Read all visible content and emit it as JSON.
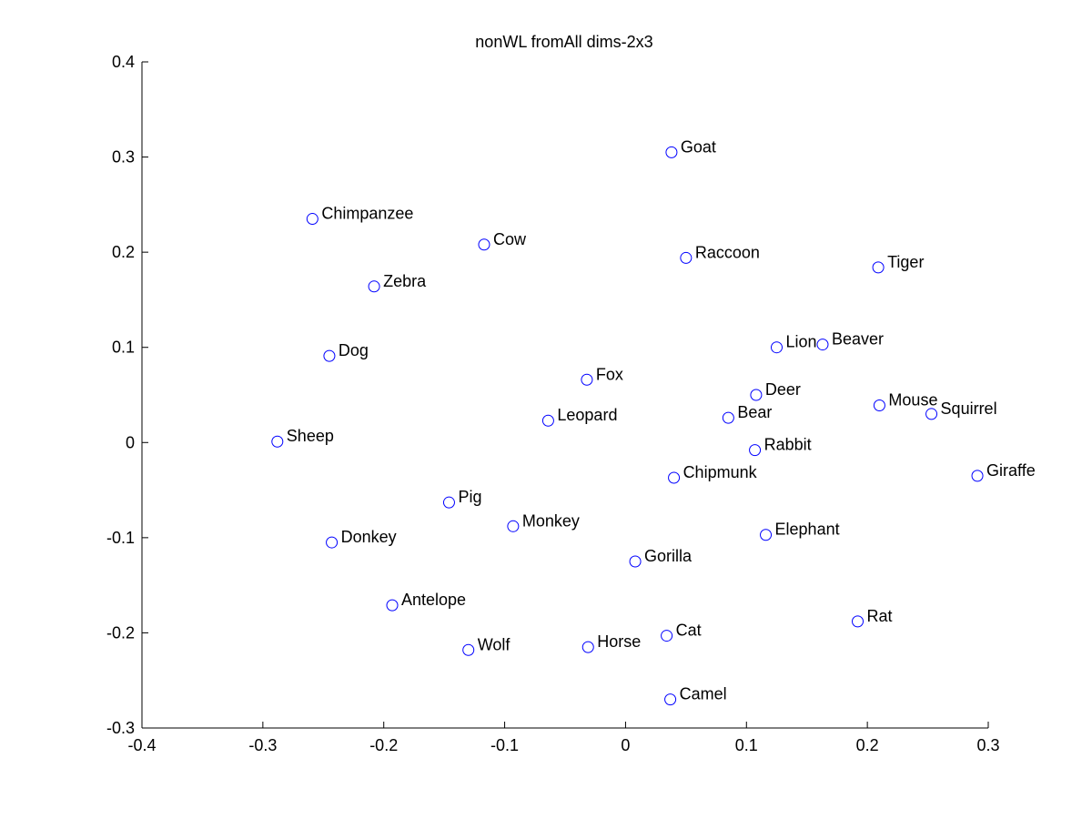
{
  "chart_data": {
    "type": "scatter",
    "title": "nonWL fromAll dims-2x3",
    "xlabel": "",
    "ylabel": "",
    "xlim": [
      -0.4,
      0.3
    ],
    "ylim": [
      -0.3,
      0.4
    ],
    "xticks": [
      -0.4,
      -0.3,
      -0.2,
      -0.1,
      0,
      0.1,
      0.2,
      0.3
    ],
    "xtick_labels": [
      "-0.4",
      "-0.3",
      "-0.2",
      "-0.1",
      "0",
      "0.1",
      "0.2",
      "0.3"
    ],
    "yticks": [
      -0.3,
      -0.2,
      -0.1,
      0,
      0.1,
      0.2,
      0.3,
      0.4
    ],
    "ytick_labels": [
      "-0.3",
      "-0.2",
      "-0.1",
      "0",
      "0.1",
      "0.2",
      "0.3",
      "0.4"
    ],
    "grid": false,
    "marker": "circle",
    "marker_color": "#0000ff",
    "points": [
      {
        "label": "Goat",
        "x": 0.038,
        "y": 0.305
      },
      {
        "label": "Chimpanzee",
        "x": -0.259,
        "y": 0.235
      },
      {
        "label": "Cow",
        "x": -0.117,
        "y": 0.208
      },
      {
        "label": "Raccoon",
        "x": 0.05,
        "y": 0.194
      },
      {
        "label": "Tiger",
        "x": 0.209,
        "y": 0.184
      },
      {
        "label": "Zebra",
        "x": -0.208,
        "y": 0.164
      },
      {
        "label": "Dog",
        "x": -0.245,
        "y": 0.091
      },
      {
        "label": "Lion",
        "x": 0.125,
        "y": 0.1
      },
      {
        "label": "Beaver",
        "x": 0.163,
        "y": 0.103
      },
      {
        "label": "Fox",
        "x": -0.032,
        "y": 0.066
      },
      {
        "label": "Deer",
        "x": 0.108,
        "y": 0.05
      },
      {
        "label": "Mouse",
        "x": 0.21,
        "y": 0.039
      },
      {
        "label": "Squirrel",
        "x": 0.253,
        "y": 0.03
      },
      {
        "label": "Leopard",
        "x": -0.064,
        "y": 0.023
      },
      {
        "label": "Bear",
        "x": 0.085,
        "y": 0.026
      },
      {
        "label": "Sheep",
        "x": -0.288,
        "y": 0.001
      },
      {
        "label": "Rabbit",
        "x": 0.107,
        "y": -0.008
      },
      {
        "label": "Chipmunk",
        "x": 0.04,
        "y": -0.037
      },
      {
        "label": "Giraffe",
        "x": 0.291,
        "y": -0.035
      },
      {
        "label": "Pig",
        "x": -0.146,
        "y": -0.063
      },
      {
        "label": "Monkey",
        "x": -0.093,
        "y": -0.088
      },
      {
        "label": "Donkey",
        "x": -0.243,
        "y": -0.105
      },
      {
        "label": "Elephant",
        "x": 0.116,
        "y": -0.097
      },
      {
        "label": "Gorilla",
        "x": 0.008,
        "y": -0.125
      },
      {
        "label": "Antelope",
        "x": -0.193,
        "y": -0.171
      },
      {
        "label": "Rat",
        "x": 0.192,
        "y": -0.188
      },
      {
        "label": "Cat",
        "x": 0.034,
        "y": -0.203
      },
      {
        "label": "Wolf",
        "x": -0.13,
        "y": -0.218
      },
      {
        "label": "Horse",
        "x": -0.031,
        "y": -0.215
      },
      {
        "label": "Camel",
        "x": 0.037,
        "y": -0.27
      }
    ]
  }
}
